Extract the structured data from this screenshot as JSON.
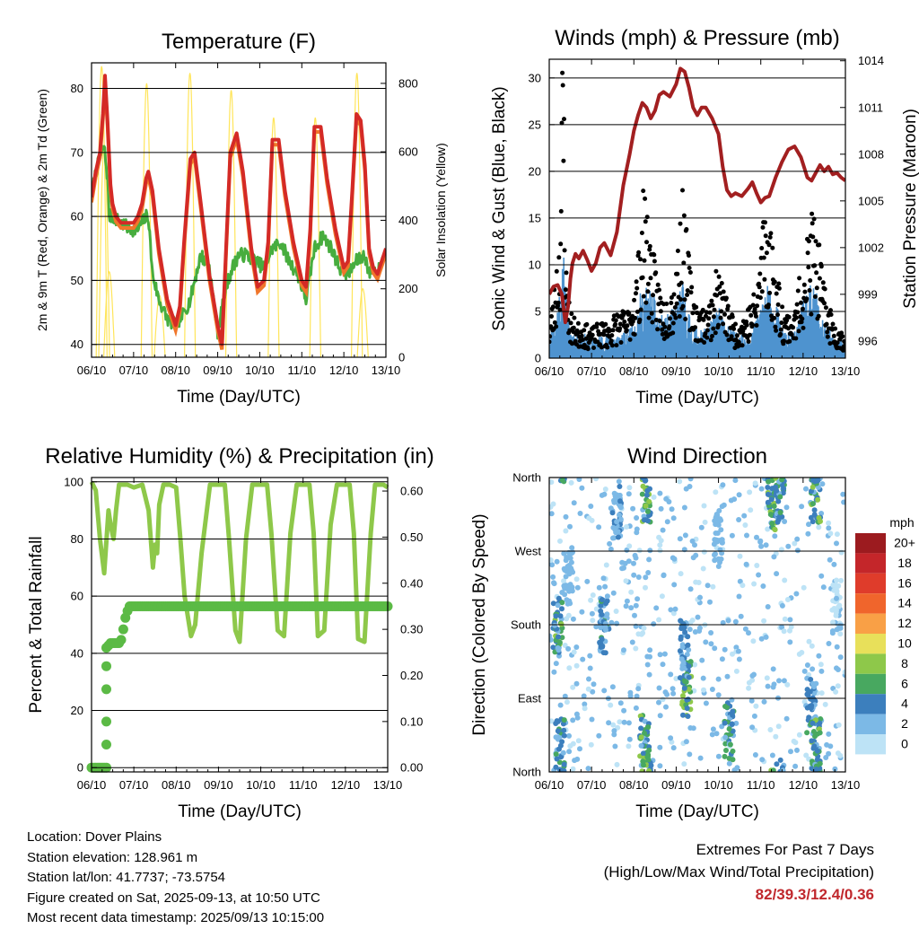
{
  "colors": {
    "temp2m": "#d42a26",
    "temp9m": "#f0762a",
    "dewpoint": "#47ad3e",
    "solar": "#ffe55a",
    "wind": "#4e93cf",
    "gust": "#000000",
    "pressure": "#a21f20",
    "rh": "#8ec84a",
    "precip": "#5bba45",
    "extremes": "#c0282d"
  },
  "footer": {
    "location": "Location: Dover Plains",
    "elevation": "Station elevation: 128.961 m",
    "latlon": "Station lat/lon: 41.7737; -73.5754",
    "created": "Figure created on Sat, 2025-09-13, at 10:50 UTC",
    "timestamp": "Most recent data timestamp: 2025/09/13 10:15:00"
  },
  "extremes": {
    "title": "Extremes For Past 7 Days",
    "subtitle": "(High/Low/Max Wind/Total Precipitation)",
    "values": "82/39.3/12.4/0.36"
  },
  "chart_data": [
    {
      "type": "line",
      "title": "Temperature (F)",
      "xlabel": "Time (Day/UTC)",
      "ylabel": "2m & 9m T (Red, Orange) & 2m Td (Green)",
      "y2label": "Solar Insolation (Yellow)",
      "xlim": [
        0,
        7
      ],
      "ylim": [
        38,
        84
      ],
      "y2lim": [
        0,
        860
      ],
      "x_ticks": [
        "06/10",
        "07/10",
        "08/10",
        "09/10",
        "10/10",
        "11/10",
        "12/10",
        "13/10"
      ],
      "y_ticks": [
        40,
        50,
        60,
        70,
        80
      ],
      "y2_ticks": [
        0,
        200,
        400,
        600,
        800
      ],
      "grid": "horizontal",
      "series": [
        {
          "key": "temp2m",
          "x": [
            0,
            0.1,
            0.2,
            0.27,
            0.32,
            0.38,
            0.45,
            0.5,
            0.58,
            0.7,
            0.85,
            1.0,
            1.1,
            1.2,
            1.3,
            1.35,
            1.45,
            1.6,
            1.8,
            2.0,
            2.1,
            2.2,
            2.35,
            2.45,
            2.6,
            2.8,
            3.0,
            3.1,
            3.2,
            3.3,
            3.45,
            3.6,
            3.8,
            3.95,
            4.1,
            4.2,
            4.3,
            4.45,
            4.6,
            4.8,
            5.0,
            5.1,
            5.2,
            5.3,
            5.45,
            5.6,
            5.8,
            6.0,
            6.1,
            6.2,
            6.3,
            6.4,
            6.5,
            6.6,
            6.7,
            6.8,
            6.9,
            7.0
          ],
          "values": [
            63,
            67,
            70,
            76,
            82,
            75,
            65,
            62,
            60,
            59,
            59,
            59,
            60,
            62,
            66,
            67,
            64,
            55,
            47,
            43,
            46,
            56,
            69,
            70,
            62,
            51,
            43,
            40,
            55,
            70,
            73,
            67,
            55,
            49,
            50,
            56,
            72,
            72,
            64,
            56,
            50,
            49,
            58,
            74,
            74,
            66,
            58,
            52,
            53,
            64,
            76,
            75,
            68,
            55,
            52,
            51,
            53,
            55
          ]
        },
        {
          "key": "dewpoint",
          "x": [
            0,
            0.1,
            0.2,
            0.3,
            0.38,
            0.42,
            0.5,
            0.7,
            0.9,
            1.0,
            1.1,
            1.2,
            1.3,
            1.35,
            1.45,
            1.6,
            1.8,
            2.0,
            2.2,
            2.35,
            2.45,
            2.6,
            2.8,
            3.0,
            3.2,
            3.35,
            3.5,
            3.7,
            3.9,
            4.1,
            4.3,
            4.5,
            4.7,
            4.9,
            5.1,
            5.3,
            5.5,
            5.7,
            5.9,
            6.1,
            6.3,
            6.5,
            6.6,
            6.7,
            6.8,
            6.9,
            7.0
          ],
          "values": [
            63,
            67,
            69,
            71,
            66,
            60,
            60,
            59,
            58,
            58,
            58,
            59,
            60,
            60,
            51,
            47,
            44,
            43,
            45,
            47,
            50,
            54,
            52,
            42,
            49,
            52,
            54,
            54,
            53,
            52,
            55,
            56,
            53,
            51,
            47,
            55,
            57,
            55,
            52,
            51,
            53,
            54,
            51,
            52,
            51,
            53,
            54
          ]
        }
      ]
    },
    {
      "type": "line",
      "title": "Winds (mph) & Pressure (mb)",
      "xlabel": "Time (Day/UTC)",
      "ylabel": "Sonic Wind & Gust (Blue, Black)",
      "y2label": "Station Pressure (Maroon)",
      "xlim": [
        0,
        7
      ],
      "ylim": [
        0,
        32
      ],
      "y2lim": [
        994.9,
        1014.1
      ],
      "x_ticks": [
        "06/10",
        "07/10",
        "08/10",
        "09/10",
        "10/10",
        "11/10",
        "12/10",
        "13/10"
      ],
      "y_ticks": [
        0,
        5,
        10,
        15,
        20,
        25,
        30
      ],
      "y2_ticks": [
        996,
        999,
        1002,
        1005,
        1008,
        1011,
        1014
      ],
      "grid": "horizontal",
      "series": [
        {
          "key": "pressure",
          "x": [
            0,
            0.1,
            0.2,
            0.3,
            0.38,
            0.45,
            0.5,
            0.55,
            0.62,
            0.7,
            0.8,
            0.9,
            1.0,
            1.1,
            1.2,
            1.3,
            1.45,
            1.6,
            1.75,
            1.9,
            2.0,
            2.1,
            2.2,
            2.3,
            2.4,
            2.5,
            2.6,
            2.7,
            2.85,
            3.0,
            3.1,
            3.2,
            3.3,
            3.4,
            3.5,
            3.6,
            3.7,
            3.85,
            4.0,
            4.1,
            4.2,
            4.3,
            4.4,
            4.55,
            4.7,
            4.8,
            4.9,
            5.0,
            5.1,
            5.2,
            5.35,
            5.5,
            5.65,
            5.8,
            5.95,
            6.1,
            6.2,
            6.3,
            6.4,
            6.5,
            6.6,
            6.7,
            6.8,
            6.9,
            7.0
          ],
          "values": [
            999,
            999.5,
            999.6,
            999,
            997.2,
            998.3,
            1000,
            1001,
            1001.6,
            1001.3,
            1001.8,
            1001.2,
            1000.5,
            1001,
            1002,
            1002.3,
            1001.5,
            1003,
            1006,
            1008,
            1009.5,
            1010.5,
            1011.3,
            1011,
            1010.3,
            1010.8,
            1011.8,
            1012,
            1011.7,
            1012.5,
            1013.5,
            1013.3,
            1012.3,
            1011,
            1010.5,
            1011,
            1011,
            1010.3,
            1009.3,
            1007.2,
            1005.7,
            1005.3,
            1005.5,
            1005.3,
            1005.8,
            1006.2,
            1005.5,
            1004.9,
            1005.2,
            1005.3,
            1006.5,
            1007.5,
            1008.3,
            1008.5,
            1007.8,
            1006.5,
            1006.3,
            1006.8,
            1007.3,
            1006.9,
            1007.2,
            1006.7,
            1006.8,
            1006.5,
            1006.3
          ]
        },
        {
          "key": "wind",
          "x": [
            0,
            0.12,
            0.25,
            0.35,
            0.45,
            0.6,
            0.8,
            1.0,
            1.2,
            1.4,
            1.6,
            1.85,
            2.05,
            2.25,
            2.45,
            2.7,
            2.95,
            3.15,
            3.35,
            3.55,
            3.8,
            4.0,
            4.2,
            4.4,
            4.65,
            4.9,
            5.1,
            5.3,
            5.55,
            5.8,
            6.05,
            6.25,
            6.5,
            6.75,
            7.0
          ],
          "values": [
            2,
            3,
            6,
            8,
            3,
            2,
            2,
            1.5,
            2,
            2,
            2,
            2,
            4,
            6,
            5,
            3,
            4,
            6,
            3,
            2,
            3,
            4,
            3,
            2,
            2,
            3,
            6,
            5,
            2,
            2,
            5,
            6,
            3,
            1.5,
            1.5
          ]
        },
        {
          "key": "gust",
          "x": [
            0,
            0.12,
            0.25,
            0.33,
            0.4,
            0.5,
            0.65,
            0.8,
            1.0,
            1.2,
            1.4,
            1.6,
            1.85,
            2.05,
            2.25,
            2.45,
            2.7,
            2.95,
            3.15,
            3.35,
            3.55,
            3.8,
            4.0,
            4.2,
            4.4,
            4.65,
            4.9,
            5.1,
            5.3,
            5.55,
            5.8,
            6.05,
            6.25,
            6.5,
            6.75,
            7.0
          ],
          "values": [
            3,
            6,
            12,
            30,
            8,
            4,
            3,
            3,
            2.5,
            3,
            3,
            4,
            4,
            7,
            15,
            9,
            5,
            7,
            14,
            7,
            4,
            5,
            8,
            5,
            3,
            4,
            6,
            15,
            9,
            4,
            4,
            10,
            13,
            6,
            3,
            2
          ]
        }
      ]
    },
    {
      "type": "line",
      "title": "Relative Humidity (%) & Precipitation (in)",
      "xlabel": "Time (Day/UTC)",
      "ylabel": "Percent & Total Rainfall",
      "xlim": [
        0,
        7
      ],
      "ylim": [
        -1.5,
        101.5
      ],
      "y2lim": [
        -0.0093,
        0.6293
      ],
      "x_ticks": [
        "06/10",
        "07/10",
        "08/10",
        "09/10",
        "10/10",
        "11/10",
        "12/10",
        "13/10"
      ],
      "y_ticks": [
        0,
        20,
        40,
        60,
        80,
        100
      ],
      "y2_ticks": [
        "0.00",
        "0.10",
        "0.20",
        "0.30",
        "0.40",
        "0.50",
        "0.60"
      ],
      "grid": "horizontal",
      "series": [
        {
          "key": "rh",
          "x": [
            0,
            0.1,
            0.2,
            0.3,
            0.4,
            0.45,
            0.52,
            0.58,
            0.65,
            0.72,
            0.85,
            1.0,
            1.2,
            1.35,
            1.45,
            1.5,
            1.55,
            1.6,
            1.7,
            1.85,
            2.0,
            2.1,
            2.2,
            2.35,
            2.45,
            2.6,
            2.8,
            3.0,
            3.15,
            3.25,
            3.4,
            3.5,
            3.65,
            3.8,
            4.0,
            4.15,
            4.25,
            4.4,
            4.55,
            4.7,
            4.85,
            5.0,
            5.15,
            5.25,
            5.35,
            5.5,
            5.65,
            5.8,
            6.0,
            6.1,
            6.2,
            6.3,
            6.45,
            6.6,
            6.7,
            6.8,
            6.9,
            7.0
          ],
          "values": [
            100,
            97,
            80,
            68,
            90,
            85,
            80,
            90,
            99,
            99,
            99,
            98,
            99,
            90,
            70,
            78,
            75,
            92,
            99,
            99,
            98,
            80,
            60,
            46,
            50,
            75,
            99,
            99,
            99,
            80,
            48,
            44,
            80,
            99,
            99,
            99,
            82,
            48,
            46,
            82,
            99,
            99,
            99,
            82,
            46,
            48,
            85,
            99,
            99,
            99,
            82,
            45,
            44,
            82,
            99,
            99,
            99,
            98
          ]
        },
        {
          "key": "precip",
          "axis": "y2",
          "x": [
            0,
            0.3,
            0.35,
            0.35,
            0.38,
            0.42,
            0.5,
            0.55,
            0.65,
            0.72,
            0.75,
            0.78,
            0.82,
            0.85,
            0.9,
            1.0,
            1.5,
            2.0,
            3.0,
            4.0,
            5.0,
            6.0,
            7.0
          ],
          "values": [
            0,
            0,
            0,
            0.26,
            0.26,
            0.27,
            0.27,
            0.27,
            0.27,
            0.28,
            0.3,
            0.32,
            0.33,
            0.34,
            0.35,
            0.35,
            0.35,
            0.35,
            0.35,
            0.35,
            0.35,
            0.35,
            0.35
          ]
        }
      ]
    },
    {
      "type": "scatter",
      "title": "Wind Direction",
      "xlabel": "Time (Day/UTC)",
      "ylabel": "Direction (Colored By Speed)",
      "xlim": [
        0,
        7
      ],
      "ylim": [
        0,
        360
      ],
      "x_ticks": [
        "06/10",
        "07/10",
        "08/10",
        "09/10",
        "10/10",
        "11/10",
        "12/10",
        "13/10"
      ],
      "y_ticks": [
        "North",
        "East",
        "South",
        "West",
        "North"
      ],
      "grid": "horizontal",
      "legend": {
        "title": "mph",
        "labels": [
          "20+",
          "18",
          "16",
          "14",
          "12",
          "10",
          "8",
          "6",
          "4",
          "2",
          "0"
        ],
        "colors": [
          "#9c1b1f",
          "#c4262a",
          "#df3c2b",
          "#f0652c",
          "#f9a046",
          "#e8e05a",
          "#8ec84a",
          "#48a860",
          "#3c7fbd",
          "#7cb9e6",
          "#bde3f6"
        ]
      },
      "clusters": [
        {
          "x": 0.2,
          "dir": 180,
          "speed": 6
        },
        {
          "x": 0.25,
          "dir": 30,
          "speed": 5
        },
        {
          "x": 1.3,
          "dir": 180,
          "speed": 4
        },
        {
          "x": 1.6,
          "dir": 320,
          "speed": 3
        },
        {
          "x": 2.3,
          "dir": 340,
          "speed": 7
        },
        {
          "x": 2.25,
          "dir": 40,
          "speed": 6
        },
        {
          "x": 3.25,
          "dir": 100,
          "speed": 7
        },
        {
          "x": 3.2,
          "dir": 150,
          "speed": 4
        },
        {
          "x": 4.25,
          "dir": 50,
          "speed": 5
        },
        {
          "x": 5.25,
          "dir": 330,
          "speed": 7
        },
        {
          "x": 5.45,
          "dir": 340,
          "speed": 5
        },
        {
          "x": 6.2,
          "dir": 80,
          "speed": 4
        },
        {
          "x": 6.3,
          "dir": 340,
          "speed": 6
        },
        {
          "x": 6.3,
          "dir": 30,
          "speed": 6
        },
        {
          "x": 0.45,
          "dir": 240,
          "speed": 2
        },
        {
          "x": 4.0,
          "dir": 290,
          "speed": 2
        },
        {
          "x": 6.8,
          "dir": 200,
          "speed": 1
        }
      ]
    }
  ]
}
